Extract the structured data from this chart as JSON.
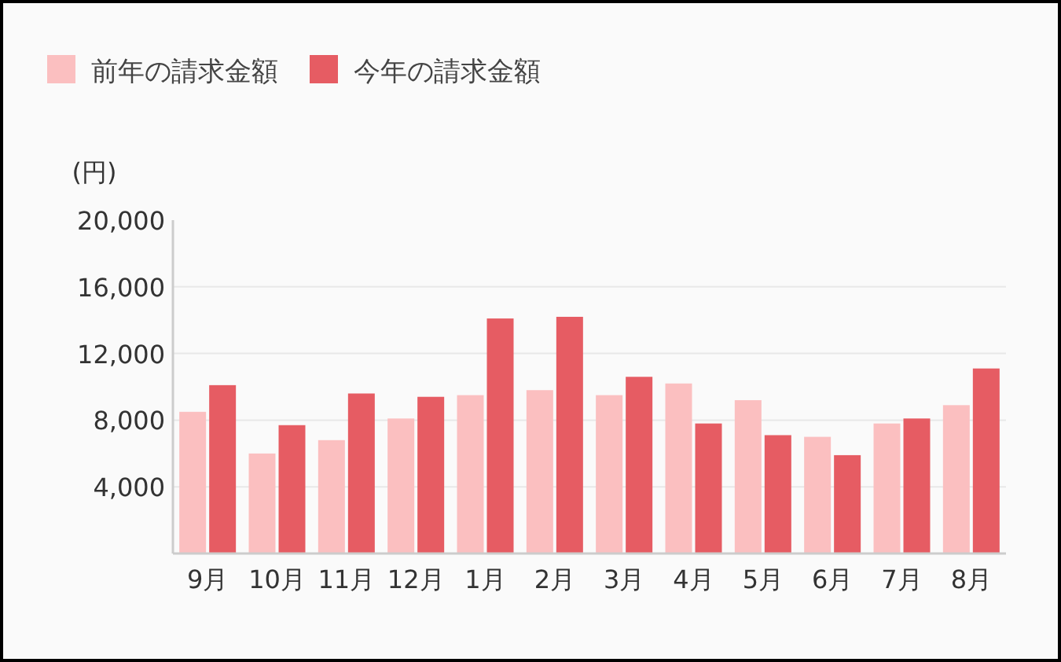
{
  "chart_data": {
    "type": "bar",
    "ylabel": "(円)",
    "categories": [
      "9月",
      "10月",
      "11月",
      "12月",
      "1月",
      "2月",
      "3月",
      "4月",
      "5月",
      "6月",
      "7月",
      "8月"
    ],
    "series": [
      {
        "name": "前年の請求金額",
        "color": "#fbbfc0",
        "values": [
          8500,
          6000,
          6800,
          8100,
          9500,
          9800,
          9500,
          10200,
          9200,
          7000,
          7800,
          8900
        ]
      },
      {
        "name": "今年の請求金額",
        "color": "#e65c63",
        "values": [
          10100,
          7700,
          9600,
          9400,
          14100,
          14200,
          10600,
          7800,
          7100,
          5900,
          8100,
          11100
        ]
      }
    ],
    "ylim": [
      0,
      20000
    ],
    "yticks": [
      {
        "value": 4000,
        "label": "4,000"
      },
      {
        "value": 8000,
        "label": "8,000"
      },
      {
        "value": 12000,
        "label": "12,000"
      },
      {
        "value": 16000,
        "label": "16,000"
      },
      {
        "value": 20000,
        "label": "20,000"
      }
    ],
    "grid": "y",
    "legend": "top left"
  }
}
